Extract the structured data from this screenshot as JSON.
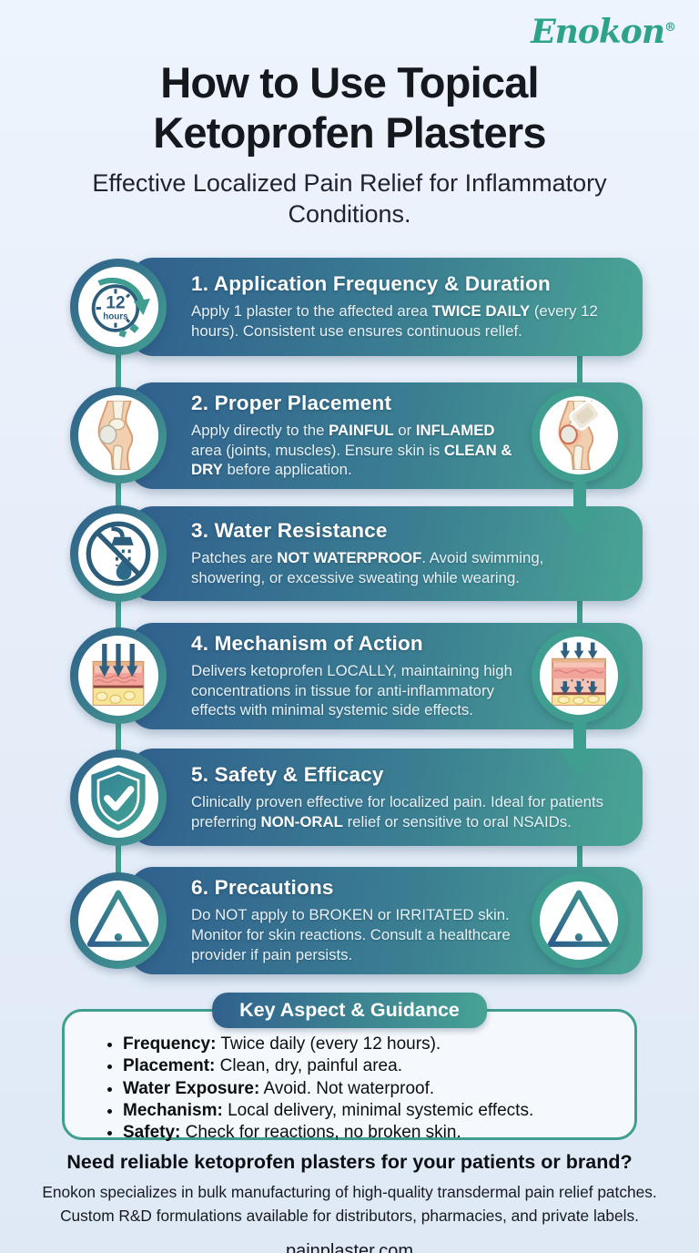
{
  "brand": {
    "name": "Enokon",
    "registered_mark": "®"
  },
  "header": {
    "title_line1": "How to Use Topical",
    "title_line2": "Ketoprofen Plasters",
    "subtitle": "Effective Localized Pain Relief for Inflammatory Conditions."
  },
  "steps": [
    {
      "title": "1. Application Frequency & Duration",
      "body": [
        {
          "t": "Apply 1 plaster to the affected area "
        },
        {
          "t": "TWICE DAILY",
          "b": true
        },
        {
          "t": " (every 12 hours). Consistent use ensures continuous rellef."
        }
      ],
      "icons": {
        "left": "clock-12-hours-icon"
      },
      "clock": {
        "value": "12",
        "unit": "hours"
      }
    },
    {
      "title": "2. Proper Placement",
      "body": [
        {
          "t": "Apply directly to the "
        },
        {
          "t": "PAINFUL",
          "b": true
        },
        {
          "t": " or "
        },
        {
          "t": "INFLAMED",
          "b": true
        },
        {
          "t": " area (joints, muscles). Ensure skin is "
        },
        {
          "t": "CLEAN & DRY",
          "b": true
        },
        {
          "t": " before application."
        }
      ],
      "icons": {
        "left": "knee-anatomy-icon",
        "right": "knee-plaster-icon"
      }
    },
    {
      "title": "3. Water Resistance",
      "body": [
        {
          "t": "Patches are "
        },
        {
          "t": "NOT WATERPROOF",
          "b": true
        },
        {
          "t": ". Avoid swimming, showering, or excessive sweating while wearing."
        }
      ],
      "icons": {
        "left": "no-shower-icon"
      }
    },
    {
      "title": "4. Mechanism of Action",
      "body": [
        {
          "t": "Delivers ketoprofen LOCALLY, maintaining high concentrations in tissue for anti-inflammatory effects with minimal systemic side effects."
        }
      ],
      "icons": {
        "left": "skin-absorption-icon",
        "right": "skin-penetration-icon"
      }
    },
    {
      "title": "5. Safety & Efficacy",
      "body": [
        {
          "t": "Clinically proven effective for localized pain. Ideal for patients preferring "
        },
        {
          "t": "NON-ORAL",
          "b": true
        },
        {
          "t": " relief or sensitive to oral NSAIDs."
        }
      ],
      "icons": {
        "left": "shield-check-icon"
      }
    },
    {
      "title": "6. Precautions",
      "body": [
        {
          "t": "Do NOT apply to BROKEN or IRRITATED skin. Monitor for skin reactions. Consult a healthcare provider if pain persists."
        }
      ],
      "icons": {
        "left": "warning-triangle-icon",
        "right": "warning-triangle-icon"
      }
    }
  ],
  "key_box": {
    "title": "Key Aspect & Guidance",
    "items": [
      {
        "label": "Frequency:",
        "text": " Twice daily (every 12 hours)."
      },
      {
        "label": "Placement:",
        "text": " Clean, dry, painful area."
      },
      {
        "label": "Water Exposure:",
        "text": " Avoid. Not waterproof."
      },
      {
        "label": "Mechanism:",
        "text": " Local delivery, minimal systemic effects."
      },
      {
        "label": "Safety:",
        "text": " Check for reactions, no broken skin."
      }
    ]
  },
  "footer": {
    "cta": "Need reliable ketoprofen plasters for your patients or brand?",
    "line1": "Enokon specializes in bulk manufacturing of high-quality transdermal pain relief patches.",
    "line2": "Custom R&D formulations available for distributors, pharmacies, and private labels.",
    "website": "painplaster.com"
  },
  "colors": {
    "accent_teal": "#3f9e8f",
    "card_gradient_start": "#30608e",
    "card_gradient_end": "#4aa595",
    "logo_teal": "#2fa389",
    "background_light_blue": "#e6eef9",
    "text_dark": "#15181d"
  }
}
